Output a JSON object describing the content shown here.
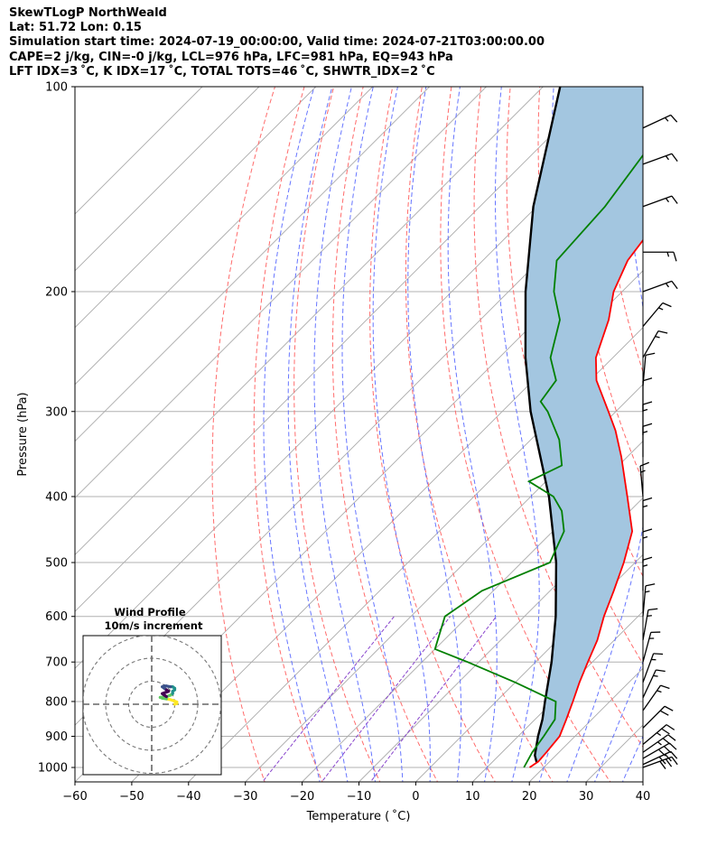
{
  "header": {
    "line1": "SkewTLogP NorthWeald",
    "line2": "Lat: 51.72   Lon: 0.15",
    "line3": "Simulation start time: 2024-07-19_00:00:00, Valid time: 2024-07-21T03:00:00.00",
    "line4": "CAPE=2 j/kg, CIN=-0 j/kg, LCL=976 hPa, LFC=981 hPa, EQ=943 hPa",
    "line5": "LFT IDX=3 ˚C, K IDX=17 ˚C, TOTAL TOTS=46 ˚C, SHWTR_IDX=2 ˚C"
  },
  "chart_data": {
    "type": "skewt",
    "xlabel": "Temperature ( ˚C)",
    "ylabel": "Pressure (hPa)",
    "xlim": [
      -60,
      40
    ],
    "ylim": [
      1050,
      100
    ],
    "x_ticks": [
      -60,
      -50,
      -40,
      -30,
      -20,
      -10,
      0,
      10,
      20,
      30,
      40
    ],
    "y_ticks": [
      1000,
      900,
      800,
      700,
      600,
      500,
      400,
      300,
      200,
      100
    ],
    "colors": {
      "temperature": "#ff0000",
      "dewpoint": "#008000",
      "parcel": "#000000",
      "cape_fill": "#a3c6e0",
      "dry_adiabats": "#ff6b6b",
      "moist_adiabats": "#5566ff",
      "mixing_ratio": "#8844cc",
      "isotherms": "#aaaaaa"
    },
    "temperature_profile": [
      {
        "p": 1000,
        "t": 17.5
      },
      {
        "p": 980,
        "t": 18.0
      },
      {
        "p": 950,
        "t": 17.8
      },
      {
        "p": 900,
        "t": 17.3
      },
      {
        "p": 850,
        "t": 15.5
      },
      {
        "p": 800,
        "t": 13.5
      },
      {
        "p": 750,
        "t": 11.3
      },
      {
        "p": 700,
        "t": 9.2
      },
      {
        "p": 650,
        "t": 7.0
      },
      {
        "p": 600,
        "t": 4.0
      },
      {
        "p": 550,
        "t": 1.2
      },
      {
        "p": 500,
        "t": -2.0
      },
      {
        "p": 450,
        "t": -6.0
      },
      {
        "p": 400,
        "t": -13.0
      },
      {
        "p": 350,
        "t": -21.0
      },
      {
        "p": 320,
        "t": -26.7
      },
      {
        "p": 300,
        "t": -31.3
      },
      {
        "p": 270,
        "t": -38.9
      },
      {
        "p": 250,
        "t": -43.0
      },
      {
        "p": 220,
        "t": -47.4
      },
      {
        "p": 200,
        "t": -51.5
      },
      {
        "p": 180,
        "t": -54.5
      },
      {
        "p": 160,
        "t": -56.0
      },
      {
        "p": 140,
        "t": -56.0
      },
      {
        "p": 120,
        "t": -58.0
      },
      {
        "p": 100,
        "t": -61.0
      }
    ],
    "dewpoint_profile": [
      {
        "p": 1000,
        "t": 16.5
      },
      {
        "p": 950,
        "t": 15.3
      },
      {
        "p": 900,
        "t": 14.5
      },
      {
        "p": 850,
        "t": 13.5
      },
      {
        "p": 800,
        "t": 10.5
      },
      {
        "p": 750,
        "t": 0.0
      },
      {
        "p": 700,
        "t": -12.0
      },
      {
        "p": 670,
        "t": -20.0
      },
      {
        "p": 600,
        "t": -24.0
      },
      {
        "p": 550,
        "t": -22.0
      },
      {
        "p": 500,
        "t": -15.0
      },
      {
        "p": 450,
        "t": -18.0
      },
      {
        "p": 420,
        "t": -22.0
      },
      {
        "p": 400,
        "t": -26.0
      },
      {
        "p": 380,
        "t": -33.0
      },
      {
        "p": 360,
        "t": -30.0
      },
      {
        "p": 330,
        "t": -35.0
      },
      {
        "p": 300,
        "t": -42.0
      },
      {
        "p": 290,
        "t": -45.0
      },
      {
        "p": 270,
        "t": -46.0
      },
      {
        "p": 250,
        "t": -51.0
      },
      {
        "p": 220,
        "t": -56.0
      },
      {
        "p": 200,
        "t": -62.0
      },
      {
        "p": 180,
        "t": -67.0
      },
      {
        "p": 150,
        "t": -68.0
      },
      {
        "p": 120,
        "t": -71.0
      },
      {
        "p": 100,
        "t": -74.0
      }
    ],
    "parcel_profile": [
      {
        "p": 985,
        "t": 18.0
      },
      {
        "p": 960,
        "t": 16.3
      },
      {
        "p": 900,
        "t": 13.5
      },
      {
        "p": 850,
        "t": 11.3
      },
      {
        "p": 800,
        "t": 8.6
      },
      {
        "p": 700,
        "t": 2.8
      },
      {
        "p": 600,
        "t": -4.5
      },
      {
        "p": 500,
        "t": -13.9
      },
      {
        "p": 400,
        "t": -26.8
      },
      {
        "p": 300,
        "t": -45.0
      },
      {
        "p": 250,
        "t": -55.4
      },
      {
        "p": 200,
        "t": -67.0
      },
      {
        "p": 150,
        "t": -80.6
      },
      {
        "p": 100,
        "t": -97.0
      }
    ],
    "wind_barbs": [
      {
        "p": 1000,
        "speed_kt": 30,
        "dir": 250
      },
      {
        "p": 990,
        "speed_kt": 30,
        "dir": 245
      },
      {
        "p": 970,
        "speed_kt": 30,
        "dir": 240
      },
      {
        "p": 950,
        "speed_kt": 25,
        "dir": 235
      },
      {
        "p": 925,
        "speed_kt": 25,
        "dir": 230
      },
      {
        "p": 875,
        "speed_kt": 20,
        "dir": 225
      },
      {
        "p": 825,
        "speed_kt": 15,
        "dir": 215
      },
      {
        "p": 790,
        "speed_kt": 15,
        "dir": 205
      },
      {
        "p": 750,
        "speed_kt": 15,
        "dir": 200
      },
      {
        "p": 700,
        "speed_kt": 15,
        "dir": 195
      },
      {
        "p": 650,
        "speed_kt": 15,
        "dir": 190
      },
      {
        "p": 600,
        "speed_kt": 15,
        "dir": 185
      },
      {
        "p": 550,
        "speed_kt": 15,
        "dir": 180
      },
      {
        "p": 500,
        "speed_kt": 15,
        "dir": 180
      },
      {
        "p": 450,
        "speed_kt": 15,
        "dir": 180
      },
      {
        "p": 400,
        "speed_kt": 15,
        "dir": 175
      },
      {
        "p": 350,
        "speed_kt": 15,
        "dir": 180
      },
      {
        "p": 325,
        "speed_kt": 15,
        "dir": 180
      },
      {
        "p": 300,
        "speed_kt": 10,
        "dir": 180
      },
      {
        "p": 275,
        "speed_kt": 10,
        "dir": 185
      },
      {
        "p": 250,
        "speed_kt": 15,
        "dir": 210
      },
      {
        "p": 225,
        "speed_kt": 15,
        "dir": 220
      },
      {
        "p": 200,
        "speed_kt": 15,
        "dir": 250
      },
      {
        "p": 175,
        "speed_kt": 15,
        "dir": 270
      },
      {
        "p": 150,
        "speed_kt": 15,
        "dir": 250
      },
      {
        "p": 130,
        "speed_kt": 15,
        "dir": 250
      },
      {
        "p": 115,
        "speed_kt": 15,
        "dir": 245
      }
    ],
    "hodograph": {
      "title": "Wind Profile",
      "subtitle": "10m/s increment",
      "rings": [
        1,
        2,
        3
      ],
      "points_ms": [
        [
          5,
          0
        ],
        [
          6,
          1
        ],
        [
          6,
          3
        ],
        [
          5,
          4
        ],
        [
          4,
          5
        ],
        [
          3,
          6
        ],
        [
          1,
          7
        ],
        [
          -1,
          8
        ],
        [
          -2,
          9
        ],
        [
          1,
          10
        ],
        [
          3,
          12
        ],
        [
          4,
          14
        ],
        [
          4,
          17
        ],
        [
          5,
          19
        ],
        [
          5,
          21
        ],
        [
          4,
          23
        ],
        [
          3,
          23
        ],
        [
          1,
          24
        ],
        [
          0,
          24
        ],
        [
          -1,
          23
        ],
        [
          0,
          21
        ],
        [
          1,
          19
        ],
        [
          2,
          17
        ],
        [
          1,
          16
        ],
        [
          0,
          15
        ],
        [
          -1,
          14
        ],
        [
          0,
          12
        ],
        [
          1,
          10
        ]
      ]
    }
  }
}
